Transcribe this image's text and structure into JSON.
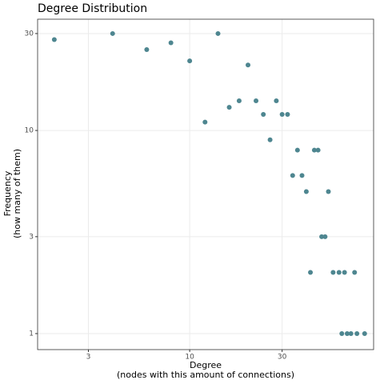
{
  "chart_data": {
    "type": "scatter",
    "title": "Degree Distribution",
    "xlabel": [
      "Degree",
      "(nodes with this amount of connections)"
    ],
    "ylabel": [
      "Frequency",
      "(how many of them)"
    ],
    "x": [
      2,
      4,
      6,
      8,
      10,
      12,
      14,
      16,
      18,
      20,
      22,
      24,
      26,
      28,
      30,
      32,
      34,
      36,
      38,
      40,
      42,
      44,
      46,
      48,
      50,
      52,
      55,
      59,
      61,
      63,
      65,
      68,
      71,
      73,
      80
    ],
    "values": [
      28,
      30,
      25,
      27,
      22,
      11,
      30,
      13,
      14,
      21,
      14,
      12,
      9,
      14,
      12,
      12,
      6,
      8,
      6,
      5,
      2,
      8,
      8,
      3,
      3,
      5,
      2,
      2,
      1,
      2,
      1,
      1,
      2,
      1,
      1
    ],
    "color": "#4e8690",
    "xlim": [
      1.64,
      89
    ],
    "ylim": [
      0.834,
      35.3
    ],
    "xticks": [
      3,
      10,
      30
    ],
    "yticks": [
      1,
      3,
      10,
      30
    ],
    "xlog": true,
    "ylog": true,
    "grid": true
  }
}
